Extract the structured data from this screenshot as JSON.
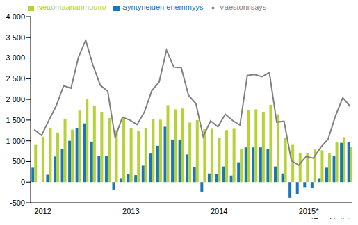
{
  "chart_data": {
    "type": "bar",
    "note": "*Ennakkotieto",
    "categories": [
      "2012",
      null,
      null,
      null,
      null,
      null,
      null,
      null,
      null,
      null,
      null,
      null,
      "2013",
      null,
      null,
      null,
      null,
      null,
      null,
      null,
      null,
      null,
      null,
      null,
      "2014",
      null,
      null,
      null,
      null,
      null,
      null,
      null,
      null,
      null,
      null,
      null,
      "2015*",
      null,
      null,
      null,
      null,
      null,
      null,
      null
    ],
    "series": [
      {
        "name": "Syntyneiden enemmyys",
        "type": "bar",
        "color": "#1b75bb",
        "values": [
          350,
          0,
          180,
          620,
          800,
          1000,
          1300,
          1420,
          980,
          640,
          640,
          -180,
          80,
          200,
          170,
          400,
          690,
          880,
          1340,
          1030,
          1030,
          670,
          360,
          -230,
          210,
          200,
          380,
          160,
          480,
          840,
          840,
          840,
          800,
          380,
          210,
          -380,
          -290,
          -120,
          -130,
          80,
          350,
          640,
          950,
          970
        ]
      },
      {
        "name": "Nettomaahanmuutto",
        "type": "bar",
        "color": "#b5d334",
        "values": [
          900,
          1100,
          1300,
          1200,
          1530,
          1270,
          1730,
          2000,
          1840,
          1700,
          1550,
          1260,
          1540,
          1300,
          1230,
          1310,
          1530,
          1510,
          1860,
          1760,
          1780,
          1440,
          1500,
          1280,
          1290,
          1080,
          1260,
          1290,
          800,
          1750,
          1760,
          1700,
          1870,
          1640,
          1080,
          900,
          700,
          700,
          790,
          770,
          690,
          960,
          1090,
          860
        ]
      },
      {
        "name": "Väestönlisäys",
        "type": "line",
        "color": "#808080",
        "values": [
          1270,
          1130,
          1500,
          1850,
          2330,
          2270,
          3010,
          3430,
          2820,
          2340,
          2200,
          1080,
          1570,
          1500,
          1390,
          1700,
          2210,
          2420,
          3190,
          2780,
          2770,
          2100,
          1900,
          1100,
          1480,
          1340,
          1640,
          1490,
          1380,
          2580,
          2600,
          2550,
          2650,
          1450,
          1470,
          520,
          410,
          620,
          580,
          840,
          1040,
          1600,
          2040,
          1830
        ]
      }
    ],
    "ylim": [
      -500,
      4000
    ],
    "yticks": [
      -500,
      0,
      500,
      {
        "value": 1000,
        "label": "1 000"
      },
      {
        "value": 1500,
        "label": "1 500"
      },
      {
        "value": 2000,
        "label": "2 000"
      },
      {
        "value": 2500,
        "label": "2 500"
      },
      {
        "value": 3000,
        "label": "3 000"
      },
      {
        "value": 3500,
        "label": "3 500"
      },
      {
        "value": 4000,
        "label": "4 000"
      }
    ],
    "grid": false,
    "legend": "top"
  }
}
